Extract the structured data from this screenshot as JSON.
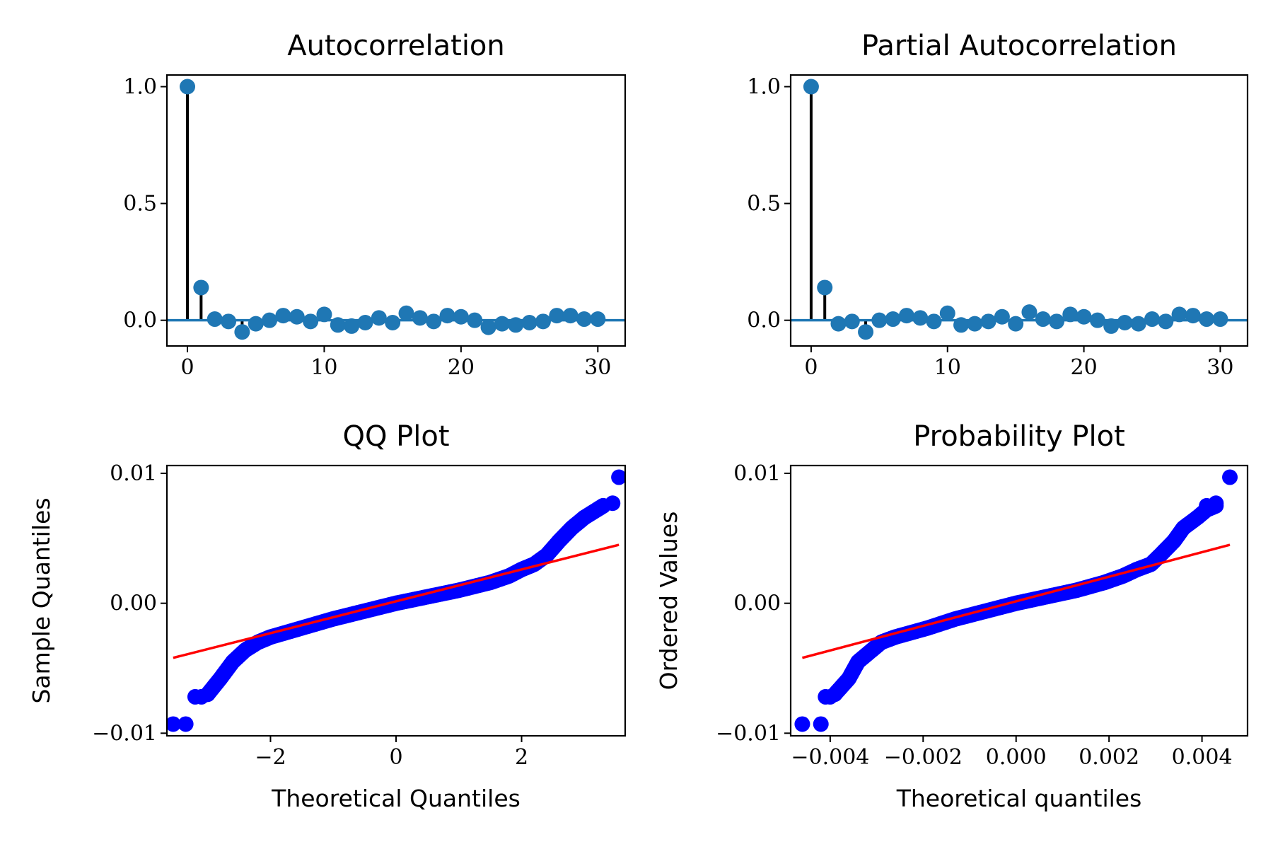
{
  "chart_data": [
    {
      "type": "scatter",
      "variant": "stem",
      "title": "Autocorrelation",
      "xlabel": "",
      "ylabel": "",
      "xlim": [
        -1.5,
        32
      ],
      "ylim": [
        -0.11,
        1.05
      ],
      "xticks": [
        0,
        10,
        20,
        30
      ],
      "yticks": [
        0.0,
        0.5,
        1.0
      ],
      "xtick_labels": [
        "0",
        "10",
        "20",
        "30"
      ],
      "ytick_labels": [
        "0.0",
        "0.5",
        "1.0"
      ],
      "baseline": 0,
      "marker_color": "#1f77b4",
      "stem_color": "#000000",
      "x": [
        0,
        1,
        2,
        3,
        4,
        5,
        6,
        7,
        8,
        9,
        10,
        11,
        12,
        13,
        14,
        15,
        16,
        17,
        18,
        19,
        20,
        21,
        22,
        23,
        24,
        25,
        26,
        27,
        28,
        29,
        30
      ],
      "values": [
        1.0,
        0.14,
        0.005,
        -0.005,
        -0.05,
        -0.015,
        0.0,
        0.02,
        0.015,
        -0.005,
        0.025,
        -0.02,
        -0.025,
        -0.01,
        0.01,
        -0.01,
        0.03,
        0.01,
        -0.005,
        0.02,
        0.015,
        0.0,
        -0.03,
        -0.015,
        -0.02,
        -0.01,
        -0.005,
        0.02,
        0.02,
        0.005,
        0.005
      ]
    },
    {
      "type": "scatter",
      "variant": "stem",
      "title": "Partial Autocorrelation",
      "xlabel": "",
      "ylabel": "",
      "xlim": [
        -1.5,
        32
      ],
      "ylim": [
        -0.11,
        1.05
      ],
      "xticks": [
        0,
        10,
        20,
        30
      ],
      "yticks": [
        0.0,
        0.5,
        1.0
      ],
      "xtick_labels": [
        "0",
        "10",
        "20",
        "30"
      ],
      "ytick_labels": [
        "0.0",
        "0.5",
        "1.0"
      ],
      "baseline": 0,
      "marker_color": "#1f77b4",
      "stem_color": "#000000",
      "x": [
        0,
        1,
        2,
        3,
        4,
        5,
        6,
        7,
        8,
        9,
        10,
        11,
        12,
        13,
        14,
        15,
        16,
        17,
        18,
        19,
        20,
        21,
        22,
        23,
        24,
        25,
        26,
        27,
        28,
        29,
        30
      ],
      "values": [
        1.0,
        0.14,
        -0.015,
        -0.005,
        -0.05,
        0.0,
        0.005,
        0.02,
        0.01,
        -0.005,
        0.03,
        -0.02,
        -0.015,
        -0.005,
        0.015,
        -0.015,
        0.035,
        0.005,
        -0.005,
        0.025,
        0.015,
        0.0,
        -0.025,
        -0.01,
        -0.015,
        0.005,
        -0.005,
        0.025,
        0.02,
        0.005,
        0.005
      ]
    },
    {
      "type": "scatter",
      "title": "QQ Plot",
      "xlabel": "Theoretical Quantiles",
      "ylabel": "Sample Quantiles",
      "xlim": [
        -3.65,
        3.65
      ],
      "ylim": [
        -0.0102,
        0.0106
      ],
      "xticks": [
        -2,
        0,
        2
      ],
      "yticks": [
        -0.01,
        0.0,
        0.01
      ],
      "xtick_labels": [
        "−2",
        "0",
        "2"
      ],
      "ytick_labels": [
        "−0.01",
        "0.00",
        "0.01"
      ],
      "point_color": "#0000ff",
      "line_color": "#ff0000",
      "fit_line": {
        "x": [
          -3.55,
          3.55
        ],
        "y": [
          -0.0042,
          0.0045
        ]
      },
      "extreme_points": {
        "x": [
          -3.55,
          -3.35,
          -3.2,
          -3.1,
          -3.0,
          3.3,
          3.45,
          3.55
        ],
        "y": [
          -0.0093,
          -0.0093,
          -0.0072,
          -0.0072,
          -0.007,
          0.0075,
          0.0077,
          0.0097
        ]
      },
      "quantile_curve": {
        "x": [
          -3.0,
          -2.8,
          -2.6,
          -2.4,
          -2.2,
          -2.0,
          -1.5,
          -1.0,
          -0.5,
          0.0,
          0.5,
          1.0,
          1.5,
          1.8,
          2.0,
          2.2,
          2.4,
          2.6,
          2.8,
          3.0,
          3.2,
          3.3
        ],
        "y": [
          -0.007,
          -0.0058,
          -0.0045,
          -0.0036,
          -0.003,
          -0.0026,
          -0.0019,
          -0.0012,
          -0.0006,
          0.0,
          0.0005,
          0.001,
          0.0016,
          0.0021,
          0.0026,
          0.003,
          0.0037,
          0.0048,
          0.0058,
          0.0066,
          0.0072,
          0.0075
        ]
      }
    },
    {
      "type": "scatter",
      "title": "Probability Plot",
      "xlabel": "Theoretical quantiles",
      "ylabel": "Ordered Values",
      "xlim": [
        -0.00485,
        0.00498
      ],
      "ylim": [
        -0.0102,
        0.0106
      ],
      "xticks": [
        -0.004,
        -0.002,
        0.0,
        0.002,
        0.004
      ],
      "yticks": [
        -0.01,
        0.0,
        0.01
      ],
      "xtick_labels": [
        "−0.004",
        "−0.002",
        "0.000",
        "0.002",
        "0.004"
      ],
      "ytick_labels": [
        "−0.01",
        "0.00",
        "0.01"
      ],
      "point_color": "#0000ff",
      "line_color": "#ff0000",
      "fit_line": {
        "x": [
          -0.0046,
          0.0046
        ],
        "y": [
          -0.0042,
          0.0045
        ]
      },
      "extreme_points": {
        "x": [
          -0.0046,
          -0.0042,
          -0.0041,
          -0.004,
          -0.0039,
          0.0041,
          0.0043,
          0.0046
        ],
        "y": [
          -0.0093,
          -0.0093,
          -0.0072,
          -0.0072,
          -0.007,
          0.0075,
          0.0077,
          0.0097
        ]
      },
      "quantile_curve": {
        "x": [
          -0.0039,
          -0.0036,
          -0.0034,
          -0.0031,
          -0.0029,
          -0.0026,
          -0.0019,
          -0.0013,
          -0.00065,
          0.0,
          0.00065,
          0.0013,
          0.0019,
          0.0023,
          0.0026,
          0.0029,
          0.0031,
          0.0034,
          0.0036,
          0.0039,
          0.0041,
          0.0043
        ],
        "y": [
          -0.007,
          -0.0058,
          -0.0045,
          -0.0036,
          -0.003,
          -0.0026,
          -0.0019,
          -0.0012,
          -0.0006,
          0.0,
          0.0005,
          0.001,
          0.0016,
          0.0021,
          0.0026,
          0.003,
          0.0037,
          0.0048,
          0.0058,
          0.0066,
          0.0072,
          0.0075
        ]
      }
    }
  ]
}
